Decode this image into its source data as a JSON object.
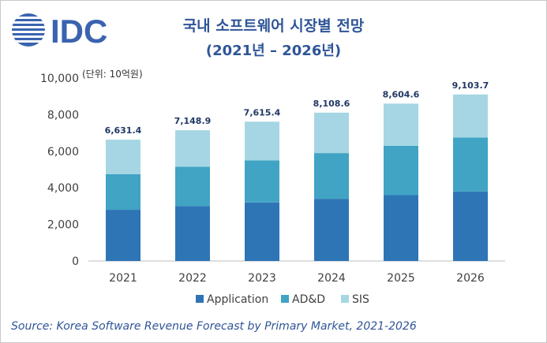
{
  "logo": {
    "text": "IDC"
  },
  "header": {
    "title": "국내 소프트웨어 시장별 전망",
    "subtitle": "(2021년 – 2026년)"
  },
  "unit_label": "(단위: 10억원)",
  "footer": {
    "source": "Source: Korea Software Revenue Forecast by Primary Market, 2021-2026"
  },
  "colors": {
    "title": "#2f5597",
    "Application": "#2e75b6",
    "AD&D": "#41a4c4",
    "SIS": "#a6d6e3"
  },
  "chart_data": {
    "type": "bar",
    "stacked": true,
    "categories": [
      "2021",
      "2022",
      "2023",
      "2024",
      "2025",
      "2026"
    ],
    "series": [
      {
        "name": "Application",
        "values": [
          2800,
          3000,
          3200,
          3400,
          3600,
          3800
        ]
      },
      {
        "name": "AD&D",
        "values": [
          1950,
          2150,
          2300,
          2500,
          2700,
          2950
        ]
      },
      {
        "name": "SIS",
        "values": [
          1881.4,
          1998.9,
          2115.4,
          2208.6,
          2304.6,
          2353.7
        ]
      }
    ],
    "totals": [
      6631.4,
      7148.9,
      7615.4,
      8108.6,
      8604.6,
      9103.7
    ],
    "total_labels": [
      "6,631.4",
      "7,148.9",
      "7,615.4",
      "8,108.6",
      "8,604.6",
      "9,103.7"
    ],
    "ylim": [
      0,
      10000
    ],
    "yticks": [
      0,
      2000,
      4000,
      6000,
      8000,
      10000
    ],
    "ytick_labels": [
      "0",
      "2,000",
      "4,000",
      "6,000",
      "8,000",
      "10,000"
    ],
    "legend": [
      "Application",
      "AD&D",
      "SIS"
    ],
    "legend_position": "bottom",
    "grid": false
  }
}
